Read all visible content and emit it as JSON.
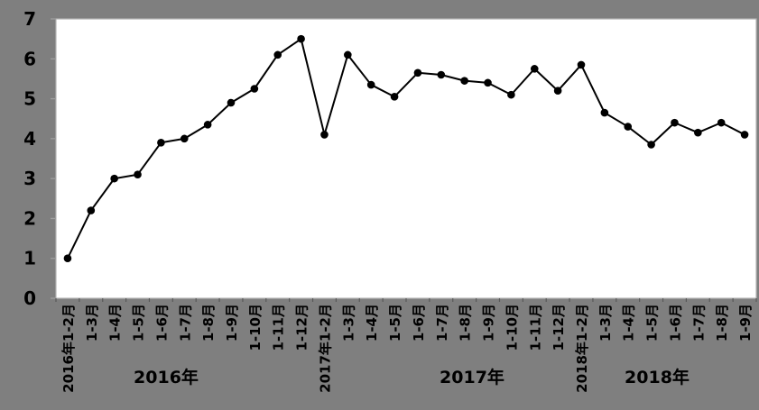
{
  "chart_data": {
    "type": "line",
    "title": "",
    "xlabel": "",
    "ylabel": "",
    "categories": [
      "2016年1-2月",
      "1-3月",
      "1-4月",
      "1-5月",
      "1-6月",
      "1-7月",
      "1-8月",
      "1-9月",
      "1-10月",
      "1-11月",
      "1-12月",
      "2017年1-2月",
      "1-3月",
      "1-4月",
      "1-5月",
      "1-6月",
      "1-7月",
      "1-8月",
      "1-9月",
      "1-10月",
      "1-11月",
      "1-12月",
      "2018年1-2月",
      "1-3月",
      "1-4月",
      "1-5月",
      "1-6月",
      "1-7月",
      "1-8月",
      "1-9月"
    ],
    "values": [
      1.0,
      2.2,
      3.0,
      3.1,
      3.9,
      4.0,
      4.35,
      4.9,
      5.25,
      6.1,
      6.5,
      4.1,
      6.1,
      5.35,
      5.05,
      5.65,
      5.6,
      5.45,
      5.4,
      5.1,
      5.75,
      5.2,
      5.85,
      4.65,
      4.3,
      3.85,
      4.4,
      4.15,
      4.4,
      4.1
    ],
    "year_groups": [
      {
        "label": "2016年",
        "center_x": 184
      },
      {
        "label": "2017年",
        "center_x": 523
      },
      {
        "label": "2018年",
        "center_x": 728
      }
    ],
    "y_ticks": [
      "0",
      "1",
      "2",
      "3",
      "4",
      "5",
      "6",
      "7"
    ],
    "ylim": [
      0,
      7
    ],
    "grid": false,
    "legend": "none",
    "marker": "filled-circle",
    "colors": {
      "page_background": "#7f7f7f",
      "plot_background": "#ffffff",
      "series_line": "#000000",
      "marker_fill": "#000000",
      "axis_frame": "#b3b3b3",
      "x_tick": "#595959",
      "y_tick": "#9e9e9e",
      "text": "#000000"
    }
  }
}
